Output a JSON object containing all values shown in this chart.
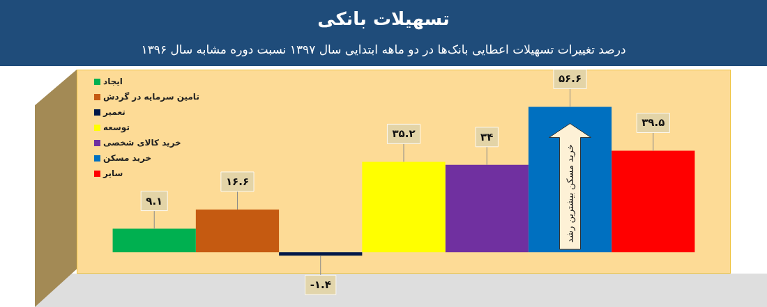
{
  "chart_data": {
    "type": "bar",
    "title": "تسهیلات بانکی",
    "subtitle": "درصد تغییرات تسهیلات اعطایی بانک‌ها در دو ماهه ابتدایی سال ۱۳۹۷ نسبت دوره مشابه سال ۱۳۹۶",
    "categories": [
      null
    ],
    "series": [
      {
        "name": "ایجاد",
        "color": "#00b050",
        "values": [
          9.1
        ],
        "value_labels": [
          "۹.۱"
        ]
      },
      {
        "name": "تامین سرمایه در گردش",
        "color": "#c55a11",
        "values": [
          16.6
        ],
        "value_labels": [
          "۱۶.۶"
        ]
      },
      {
        "name": "تعمیر",
        "color": "#001848",
        "values": [
          -1.4
        ],
        "value_labels": [
          "-۱.۴"
        ]
      },
      {
        "name": "توسعه",
        "color": "#ffff00",
        "values": [
          35.2
        ],
        "value_labels": [
          "۳۵.۲"
        ]
      },
      {
        "name": "خرید کالای شخصی",
        "color": "#7030a0",
        "values": [
          34
        ],
        "value_labels": [
          "۳۴"
        ]
      },
      {
        "name": "خرید مسکن",
        "color": "#0070c0",
        "values": [
          56.6
        ],
        "value_labels": [
          "۵۶.۶"
        ]
      },
      {
        "name": "سایر",
        "color": "#ff0000",
        "values": [
          39.5
        ],
        "value_labels": [
          "۳۹.۵"
        ]
      }
    ],
    "legend": "top left",
    "tick_labels": false,
    "annotations": [
      "خرید مسکن بیشترین رشد"
    ]
  }
}
